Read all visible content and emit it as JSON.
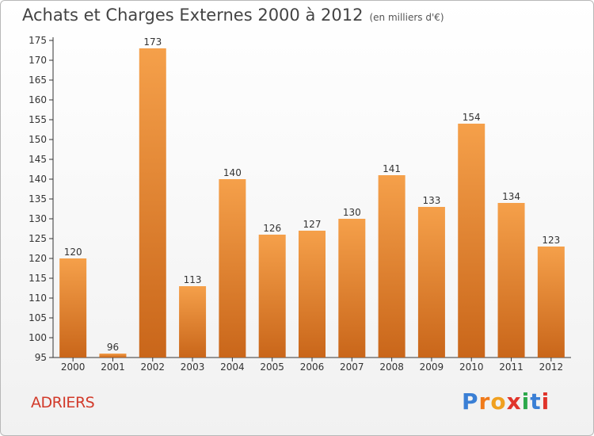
{
  "header": {
    "title": "Achats et Charges Externes 2000 à 2012",
    "subtitle": "(en milliers d'€)"
  },
  "footer": {
    "town": "ADRIERS",
    "logo_letters": [
      "P",
      "r",
      "o",
      "x",
      "i",
      "t",
      "i"
    ],
    "logo_colors": [
      "#3a7fd5",
      "#f07a1a",
      "#f0a020",
      "#e0342a",
      "#2ba84a",
      "#3a7fd5",
      "#e0342a"
    ]
  },
  "chart_data": {
    "type": "bar",
    "categories": [
      "2000",
      "2001",
      "2002",
      "2003",
      "2004",
      "2005",
      "2006",
      "2007",
      "2008",
      "2009",
      "2010",
      "2011",
      "2012"
    ],
    "values": [
      120,
      96,
      173,
      113,
      140,
      126,
      127,
      130,
      141,
      133,
      154,
      134,
      123
    ],
    "ylim": [
      95,
      175
    ],
    "yticks": [
      95,
      100,
      105,
      110,
      115,
      120,
      125,
      130,
      135,
      140,
      145,
      150,
      155,
      160,
      165,
      170,
      175
    ],
    "grid": false,
    "bar_color_light": "#f5a04a",
    "bar_color_dark": "#c9661a"
  }
}
